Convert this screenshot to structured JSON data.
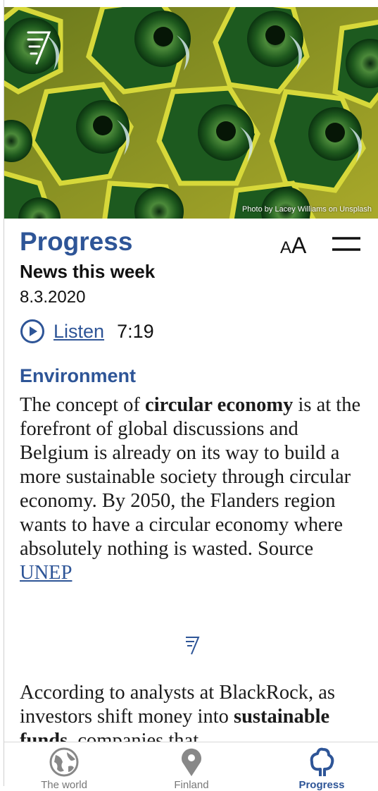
{
  "header": {
    "photo_credit": "Photo by Lacey Williams on Unsplash"
  },
  "article": {
    "section_title": "Progress",
    "subtitle": "News this week",
    "date": "8.3.2020",
    "listen_label": "Listen",
    "listen_duration": "7:19",
    "font_size_button": {
      "small": "A",
      "large": "A"
    },
    "topic": "Environment",
    "paragraph_1": {
      "text_1": "The concept of ",
      "bold_1": "circular economy",
      "text_2": " is at the forefront of global discussions and Belgium is already on its way to build a more sustainable society through circular economy. By 2050, the Flanders region wants to have a circular economy where absolutely nothing is wasted. Source ",
      "link_1": "UNEP"
    },
    "paragraph_2": {
      "text_1": "According to analysts at BlackRock, as investors shift money into ",
      "bold_1": "sustainable funds",
      "text_2": ", companies that"
    }
  },
  "tab_bar": {
    "tabs": [
      "The world",
      "Finland",
      "Progress"
    ]
  }
}
